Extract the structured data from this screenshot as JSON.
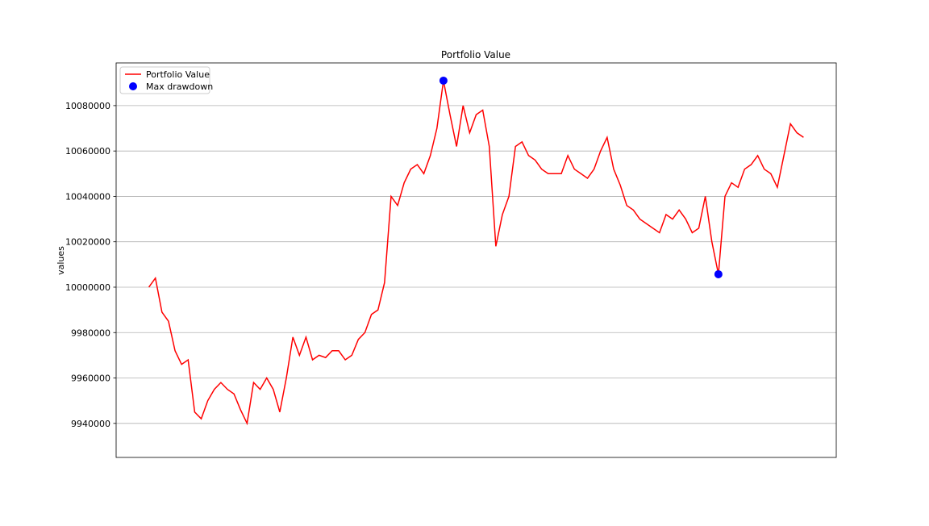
{
  "chart_data": {
    "type": "line",
    "title": "Portfolio Value",
    "y_label": "values",
    "ylim": [
      9925000,
      10098800
    ],
    "yticks": [
      9940000,
      9960000,
      9980000,
      10000000,
      10020000,
      10040000,
      10060000,
      10080000
    ],
    "grid": true,
    "legend": "upper left",
    "series": [
      {
        "name": "Portfolio Value",
        "color": "#ff0000",
        "style": "line",
        "values": [
          10000000,
          10004000,
          9989000,
          9985000,
          9972000,
          9966000,
          9968000,
          9945000,
          9942000,
          9950000,
          9955000,
          9958000,
          9955000,
          9953000,
          9946000,
          9940000,
          9958000,
          9955000,
          9960000,
          9955000,
          9945000,
          9960000,
          9978000,
          9970000,
          9978000,
          9968000,
          9970000,
          9969000,
          9972000,
          9972000,
          9968000,
          9970000,
          9977000,
          9980000,
          9988000,
          9990000,
          10002000,
          10040000,
          10036000,
          10046000,
          10052000,
          10054000,
          10050000,
          10058000,
          10070000,
          10091000,
          10076000,
          10062000,
          10080000,
          10068000,
          10076000,
          10078000,
          10062000,
          10018000,
          10032000,
          10040000,
          10062000,
          10064000,
          10058000,
          10056000,
          10052000,
          10050000,
          10050000,
          10050000,
          10058000,
          10052000,
          10050000,
          10048000,
          10052000,
          10060000,
          10066000,
          10052000,
          10045000,
          10036000,
          10034000,
          10030000,
          10028000,
          10026000,
          10024000,
          10032000,
          10030000,
          10034000,
          10030000,
          10024000,
          10026000,
          10040000,
          10020000,
          10005700,
          10040000,
          10046000,
          10044000,
          10052000,
          10054000,
          10058000,
          10052000,
          10050000,
          10044000,
          10058000,
          10072000,
          10068000,
          10066000
        ]
      },
      {
        "name": "Max drawdown",
        "color": "#0000ff",
        "style": "marker",
        "values": [
          null,
          null,
          null,
          null,
          null,
          null,
          null,
          null,
          null,
          null,
          null,
          null,
          null,
          null,
          null,
          null,
          null,
          null,
          null,
          null,
          null,
          null,
          null,
          null,
          null,
          null,
          null,
          null,
          null,
          null,
          null,
          null,
          null,
          null,
          null,
          null,
          null,
          null,
          null,
          null,
          null,
          null,
          null,
          null,
          null,
          10091000,
          null,
          null,
          null,
          null,
          null,
          null,
          null,
          null,
          null,
          null,
          null,
          null,
          null,
          null,
          null,
          null,
          null,
          null,
          null,
          null,
          null,
          null,
          null,
          null,
          null,
          null,
          null,
          null,
          null,
          null,
          null,
          null,
          null,
          null,
          null,
          null,
          null,
          null,
          null,
          null,
          null,
          10005700,
          null,
          null,
          null,
          null,
          null,
          null,
          null,
          null,
          null,
          null,
          null,
          null,
          null
        ]
      }
    ]
  }
}
